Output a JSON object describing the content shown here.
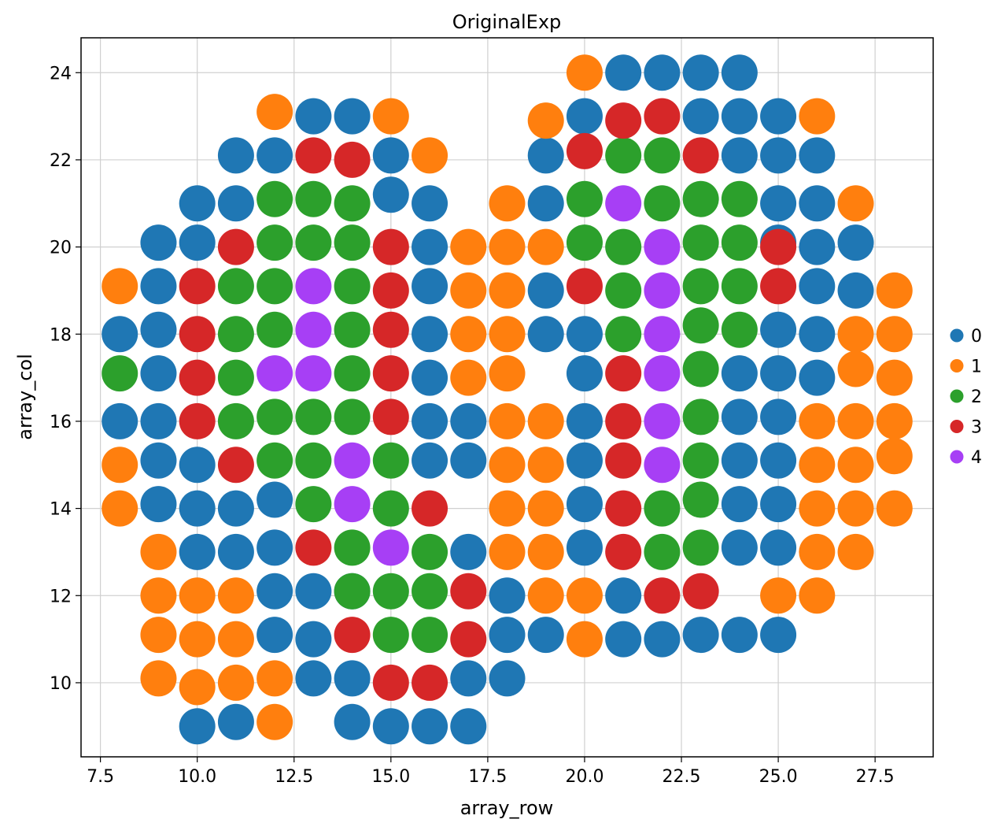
{
  "chart_data": {
    "type": "scatter",
    "title": "OriginalExp",
    "xlabel": "array_row",
    "ylabel": "array_col",
    "xlim": [
      7.0,
      29.0
    ],
    "ylim": [
      8.3,
      24.8
    ],
    "xticks": [
      7.5,
      10.0,
      12.5,
      15.0,
      17.5,
      20.0,
      22.5,
      25.0,
      27.5
    ],
    "xtick_labels": [
      "7.5",
      "10.0",
      "12.5",
      "15.0",
      "17.5",
      "20.0",
      "22.5",
      "25.0",
      "27.5"
    ],
    "yticks": [
      10,
      12,
      14,
      16,
      18,
      20,
      22,
      24
    ],
    "ytick_labels": [
      "10",
      "12",
      "14",
      "16",
      "18",
      "20",
      "22",
      "24"
    ],
    "grid": true,
    "legend_position": "right",
    "series": [
      {
        "name": "0",
        "color": "#1f77b4",
        "points": [
          [
            10,
            9
          ],
          [
            11,
            9.1
          ],
          [
            14,
            9.1
          ],
          [
            15,
            9
          ],
          [
            16,
            9
          ],
          [
            17,
            9
          ],
          [
            13,
            10.1
          ],
          [
            14,
            10.1
          ],
          [
            17,
            10.1
          ],
          [
            18,
            10.1
          ],
          [
            12,
            11.1
          ],
          [
            13,
            11
          ],
          [
            18,
            11.1
          ],
          [
            19,
            11.1
          ],
          [
            21,
            11
          ],
          [
            22,
            11
          ],
          [
            23,
            11.1
          ],
          [
            24,
            11.1
          ],
          [
            25,
            11.1
          ],
          [
            12,
            12.1
          ],
          [
            13,
            12.1
          ],
          [
            14,
            12.1
          ],
          [
            18,
            12
          ],
          [
            21,
            12
          ],
          [
            10,
            13
          ],
          [
            11,
            13
          ],
          [
            12,
            13.1
          ],
          [
            17,
            13
          ],
          [
            20,
            13.1
          ],
          [
            24,
            13.1
          ],
          [
            25,
            13.1
          ],
          [
            9,
            14.1
          ],
          [
            10,
            14
          ],
          [
            11,
            14
          ],
          [
            12,
            14.2
          ],
          [
            20,
            14.1
          ],
          [
            24,
            14.1
          ],
          [
            25,
            14.1
          ],
          [
            9,
            15.1
          ],
          [
            10,
            15
          ],
          [
            16,
            15.1
          ],
          [
            17,
            15.1
          ],
          [
            20,
            15.1
          ],
          [
            24,
            15.1
          ],
          [
            25,
            15.1
          ],
          [
            8,
            16
          ],
          [
            9,
            16
          ],
          [
            16,
            16
          ],
          [
            17,
            16
          ],
          [
            20,
            16
          ],
          [
            24,
            16.1
          ],
          [
            25,
            16.1
          ],
          [
            9,
            17.1
          ],
          [
            16,
            17
          ],
          [
            20,
            17.1
          ],
          [
            24,
            17.1
          ],
          [
            25,
            17.1
          ],
          [
            26,
            17
          ],
          [
            8,
            18
          ],
          [
            9,
            18.1
          ],
          [
            16,
            18
          ],
          [
            19,
            18
          ],
          [
            20,
            18
          ],
          [
            25,
            18.1
          ],
          [
            26,
            18
          ],
          [
            9,
            19.1
          ],
          [
            16,
            19.1
          ],
          [
            19,
            19
          ],
          [
            26,
            19.1
          ],
          [
            27,
            19
          ],
          [
            9,
            20.1
          ],
          [
            10,
            20.1
          ],
          [
            16,
            20
          ],
          [
            25,
            20.1
          ],
          [
            26,
            20
          ],
          [
            27,
            20.1
          ],
          [
            10,
            21
          ],
          [
            11,
            21
          ],
          [
            15,
            21.2
          ],
          [
            16,
            21
          ],
          [
            19,
            21
          ],
          [
            25,
            21
          ],
          [
            26,
            21
          ],
          [
            11,
            22.1
          ],
          [
            12,
            22.1
          ],
          [
            15,
            22.1
          ],
          [
            19,
            22.1
          ],
          [
            24,
            22.1
          ],
          [
            25,
            22.1
          ],
          [
            26,
            22.1
          ],
          [
            13,
            23
          ],
          [
            14,
            23
          ],
          [
            20,
            23
          ],
          [
            23,
            23
          ],
          [
            24,
            23
          ],
          [
            25,
            23
          ],
          [
            21,
            24
          ],
          [
            22,
            24
          ],
          [
            23,
            24
          ],
          [
            24,
            24
          ]
        ]
      },
      {
        "name": "1",
        "color": "#ff7f0e",
        "points": [
          [
            12,
            9.1
          ],
          [
            9,
            10.1
          ],
          [
            10,
            9.9
          ],
          [
            11,
            10
          ],
          [
            12,
            10.1
          ],
          [
            9,
            11.1
          ],
          [
            10,
            11
          ],
          [
            11,
            11
          ],
          [
            20,
            11
          ],
          [
            9,
            12
          ],
          [
            10,
            12
          ],
          [
            11,
            12
          ],
          [
            19,
            12
          ],
          [
            20,
            12
          ],
          [
            25,
            12
          ],
          [
            26,
            12
          ],
          [
            9,
            13
          ],
          [
            18,
            13
          ],
          [
            19,
            13
          ],
          [
            26,
            13
          ],
          [
            27,
            13
          ],
          [
            8,
            14
          ],
          [
            18,
            14
          ],
          [
            19,
            14
          ],
          [
            26,
            14
          ],
          [
            27,
            14
          ],
          [
            28,
            14
          ],
          [
            8,
            15
          ],
          [
            18,
            15
          ],
          [
            19,
            15
          ],
          [
            26,
            15
          ],
          [
            27,
            15
          ],
          [
            28,
            15.2
          ],
          [
            18,
            16
          ],
          [
            19,
            16
          ],
          [
            26,
            16
          ],
          [
            27,
            16
          ],
          [
            28,
            16
          ],
          [
            17,
            17
          ],
          [
            18,
            17.1
          ],
          [
            27,
            17.2
          ],
          [
            28,
            17
          ],
          [
            17,
            18
          ],
          [
            18,
            18
          ],
          [
            27,
            18
          ],
          [
            28,
            18
          ],
          [
            17,
            19
          ],
          [
            18,
            19
          ],
          [
            28,
            19
          ],
          [
            8,
            19.1
          ],
          [
            17,
            20
          ],
          [
            18,
            20
          ],
          [
            19,
            20
          ],
          [
            18,
            21
          ],
          [
            27,
            21
          ],
          [
            16,
            22.1
          ],
          [
            19,
            22.9
          ],
          [
            12,
            23.1
          ],
          [
            15,
            23
          ],
          [
            26,
            23
          ],
          [
            20,
            24
          ]
        ]
      },
      {
        "name": "2",
        "color": "#2ca02c",
        "points": [
          [
            15,
            11.1
          ],
          [
            16,
            11.1
          ],
          [
            14,
            12.1
          ],
          [
            15,
            12.1
          ],
          [
            16,
            12.1
          ],
          [
            14,
            13.1
          ],
          [
            16,
            13
          ],
          [
            22,
            13
          ],
          [
            23,
            13.1
          ],
          [
            13,
            14.1
          ],
          [
            15,
            14
          ],
          [
            22,
            14
          ],
          [
            23,
            14.2
          ],
          [
            12,
            15.1
          ],
          [
            13,
            15.1
          ],
          [
            15,
            15.1
          ],
          [
            23,
            15.1
          ],
          [
            11,
            16
          ],
          [
            12,
            16.1
          ],
          [
            13,
            16.1
          ],
          [
            14,
            16.1
          ],
          [
            23,
            16.1
          ],
          [
            8,
            17.1
          ],
          [
            11,
            17
          ],
          [
            14,
            17.1
          ],
          [
            23,
            17.2
          ],
          [
            11,
            18
          ],
          [
            12,
            18.1
          ],
          [
            14,
            18.1
          ],
          [
            21,
            18
          ],
          [
            23,
            18.2
          ],
          [
            24,
            18.1
          ],
          [
            11,
            19.1
          ],
          [
            12,
            19.1
          ],
          [
            14,
            19.1
          ],
          [
            21,
            19
          ],
          [
            23,
            19.1
          ],
          [
            24,
            19.1
          ],
          [
            12,
            20.1
          ],
          [
            13,
            20.1
          ],
          [
            14,
            20.1
          ],
          [
            20,
            20.1
          ],
          [
            21,
            20
          ],
          [
            23,
            20.1
          ],
          [
            24,
            20.1
          ],
          [
            12,
            21.1
          ],
          [
            13,
            21.1
          ],
          [
            14,
            21
          ],
          [
            20,
            21.1
          ],
          [
            22,
            21
          ],
          [
            23,
            21.1
          ],
          [
            24,
            21.1
          ],
          [
            21,
            22.1
          ],
          [
            22,
            22.1
          ]
        ]
      },
      {
        "name": "3",
        "color": "#d62728",
        "points": [
          [
            15,
            10
          ],
          [
            16,
            10
          ],
          [
            14,
            11.1
          ],
          [
            17,
            11
          ],
          [
            17,
            12.1
          ],
          [
            22,
            12
          ],
          [
            23,
            12.1
          ],
          [
            13,
            13.1
          ],
          [
            21,
            13
          ],
          [
            16,
            14
          ],
          [
            21,
            14
          ],
          [
            11,
            15
          ],
          [
            21,
            15.1
          ],
          [
            10,
            16
          ],
          [
            15,
            16.1
          ],
          [
            21,
            16
          ],
          [
            10,
            17
          ],
          [
            15,
            17.1
          ],
          [
            21,
            17.1
          ],
          [
            10,
            18
          ],
          [
            15,
            18.1
          ],
          [
            10,
            19.1
          ],
          [
            15,
            19
          ],
          [
            20,
            19.1
          ],
          [
            25,
            19.1
          ],
          [
            11,
            20
          ],
          [
            15,
            20
          ],
          [
            25,
            20
          ],
          [
            13,
            22.1
          ],
          [
            14,
            22
          ],
          [
            20,
            22.2
          ],
          [
            23,
            22.1
          ],
          [
            21,
            22.9
          ],
          [
            22,
            23
          ]
        ]
      },
      {
        "name": "4",
        "color": "#a73ff5",
        "points": [
          [
            15,
            13.1
          ],
          [
            14,
            14.1
          ],
          [
            14,
            15.1
          ],
          [
            22,
            15
          ],
          [
            22,
            16
          ],
          [
            12,
            17.1
          ],
          [
            13,
            17.1
          ],
          [
            22,
            17.1
          ],
          [
            13,
            18.1
          ],
          [
            22,
            18
          ],
          [
            13,
            19.1
          ],
          [
            22,
            19
          ],
          [
            22,
            20
          ],
          [
            21,
            21
          ]
        ]
      }
    ]
  }
}
